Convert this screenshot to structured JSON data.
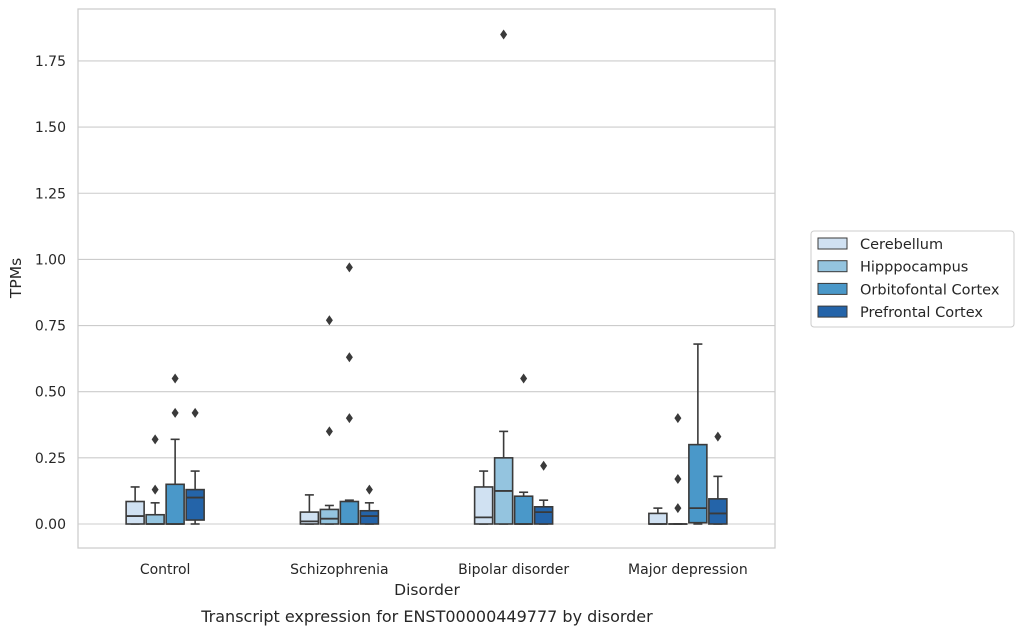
{
  "chart_data": {
    "type": "box",
    "caption": "Transcript expression for ENST00000449777 by disorder",
    "xlabel": "Disorder",
    "ylabel": "TPMs",
    "ylim": [
      -0.09,
      1.95
    ],
    "yticks": [
      0.0,
      0.25,
      0.5,
      0.75,
      1.0,
      1.25,
      1.5,
      1.75
    ],
    "ytick_labels": [
      "0.00",
      "0.25",
      "0.50",
      "0.75",
      "1.00",
      "1.25",
      "1.50",
      "1.75"
    ],
    "grid": "horizontal",
    "legend_placement": "right",
    "categories": [
      "Control",
      "Schizophrenia",
      "Bipolar disorder",
      "Major depression"
    ],
    "series": [
      {
        "name": "Cerebellum",
        "color": "#d0e1f2",
        "boxes": [
          {
            "whislo": 0.0,
            "q1": 0.0,
            "med": 0.03,
            "q3": 0.085,
            "whishi": 0.14,
            "fliers": []
          },
          {
            "whislo": 0.0,
            "q1": 0.0,
            "med": 0.01,
            "q3": 0.045,
            "whishi": 0.11,
            "fliers": []
          },
          {
            "whislo": 0.0,
            "q1": 0.0,
            "med": 0.025,
            "q3": 0.14,
            "whishi": 0.2,
            "fliers": []
          },
          {
            "whislo": 0.0,
            "q1": 0.0,
            "med": 0.0,
            "q3": 0.04,
            "whishi": 0.06,
            "fliers": []
          }
        ]
      },
      {
        "name": "Hipppocampus",
        "color": "#94c4df",
        "boxes": [
          {
            "whislo": 0.0,
            "q1": 0.0,
            "med": 0.0,
            "q3": 0.035,
            "whishi": 0.08,
            "fliers": [
              0.13,
              0.32
            ]
          },
          {
            "whislo": 0.0,
            "q1": 0.0,
            "med": 0.02,
            "q3": 0.055,
            "whishi": 0.07,
            "fliers": [
              0.35,
              0.77
            ]
          },
          {
            "whislo": 0.0,
            "q1": 0.0,
            "med": 0.125,
            "q3": 0.25,
            "whishi": 0.35,
            "fliers": [
              1.85
            ]
          },
          {
            "whislo": 0.0,
            "q1": 0.0,
            "med": 0.0,
            "q3": 0.0,
            "whishi": 0.0,
            "fliers": [
              0.06,
              0.17,
              0.4
            ]
          }
        ]
      },
      {
        "name": "Orbitofontal Cortex",
        "color": "#4a98c9",
        "boxes": [
          {
            "whislo": 0.0,
            "q1": 0.0,
            "med": 0.0,
            "q3": 0.15,
            "whishi": 0.32,
            "fliers": [
              0.42,
              0.55
            ]
          },
          {
            "whislo": 0.0,
            "q1": 0.0,
            "med": 0.0,
            "q3": 0.085,
            "whishi": 0.09,
            "fliers": [
              0.4,
              0.63,
              0.97
            ]
          },
          {
            "whislo": 0.0,
            "q1": 0.0,
            "med": 0.0,
            "q3": 0.105,
            "whishi": 0.12,
            "fliers": [
              0.55
            ]
          },
          {
            "whislo": 0.0,
            "q1": 0.005,
            "med": 0.06,
            "q3": 0.3,
            "whishi": 0.68,
            "fliers": []
          }
        ]
      },
      {
        "name": "Prefrontal Cortex",
        "color": "#2464a9",
        "boxes": [
          {
            "whislo": 0.0,
            "q1": 0.015,
            "med": 0.1,
            "q3": 0.13,
            "whishi": 0.2,
            "fliers": [
              0.42
            ]
          },
          {
            "whislo": 0.0,
            "q1": 0.0,
            "med": 0.03,
            "q3": 0.05,
            "whishi": 0.08,
            "fliers": [
              0.13
            ]
          },
          {
            "whislo": 0.0,
            "q1": 0.0,
            "med": 0.045,
            "q3": 0.065,
            "whishi": 0.09,
            "fliers": [
              0.22
            ]
          },
          {
            "whislo": 0.0,
            "q1": 0.0,
            "med": 0.04,
            "q3": 0.095,
            "whishi": 0.18,
            "fliers": [
              0.33
            ]
          }
        ]
      }
    ]
  }
}
